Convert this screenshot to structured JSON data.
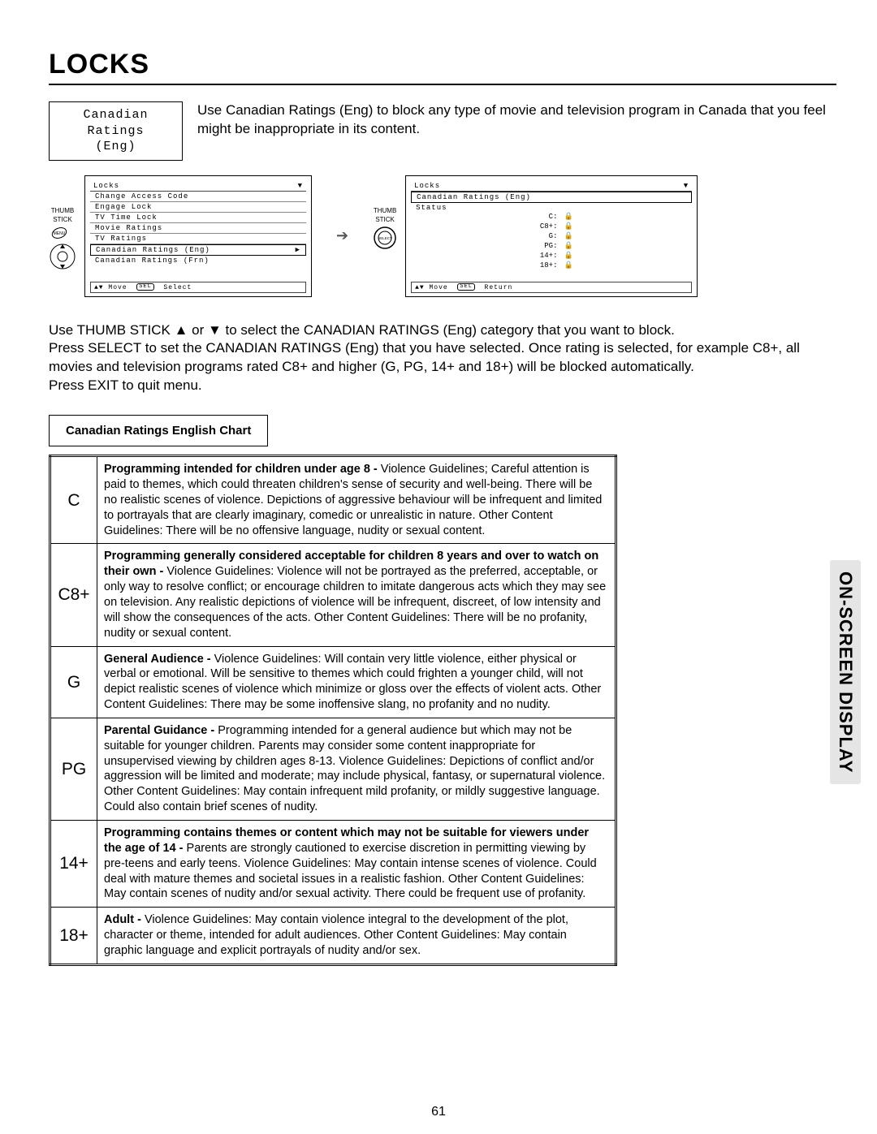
{
  "title": "LOCKS",
  "introBoxLine1": "Canadian Ratings",
  "introBoxLine2": "(Eng)",
  "introText": "Use Canadian Ratings (Eng) to block any type of movie and television program in Canada that you feel might be inappropriate in its content.",
  "thumbLabel1": "THUMB",
  "thumbLabel2": "STICK",
  "menuBadge": "MENU",
  "selectBadge": "SELECT",
  "osd1": {
    "header": "Locks",
    "items": [
      "Change Access Code",
      "Engage Lock",
      "TV Time Lock",
      "Movie Ratings",
      "TV Ratings"
    ],
    "highlight": "Canadian Ratings (Eng)",
    "after": "Canadian Ratings (Frn)",
    "footer": "▲▼ Move   SEL  Select"
  },
  "osd2": {
    "header": "Locks",
    "sub": "Canadian Ratings (Eng)",
    "statusLabel": "Status",
    "rows": [
      {
        "k": "C:",
        "lock": "🔒"
      },
      {
        "k": "C8+:",
        "lock": "🔒"
      },
      {
        "k": "G:",
        "lock": "🔒"
      },
      {
        "k": "PG:",
        "lock": "🔒"
      },
      {
        "k": "14+:",
        "lock": "🔒"
      },
      {
        "k": "18+:",
        "lock": "🔒"
      }
    ],
    "footer": "▲▼ Move   SEL  Return"
  },
  "bodyText": "Use THUMB STICK ▲ or ▼ to select the CANADIAN RATINGS (Eng) category that you want to block.\nPress SELECT to set the CANADIAN RATINGS (Eng) that you have selected. Once rating is selected, for example C8+, all movies and television programs rated C8+ and higher (G, PG, 14+ and 18+) will be blocked automatically.\nPress EXIT to quit menu.",
  "chartTitle": "Canadian Ratings English Chart",
  "ratings": [
    {
      "code": "C",
      "descBold": "Programming intended for children under age 8 - ",
      "desc": "Violence Guidelines; Careful attention is paid to themes, which could threaten children's sense of security and well-being.  There will be no realistic scenes of violence.  Depictions of aggressive behaviour will be infrequent and limited to portrayals that are clearly imaginary, comedic or unrealistic in nature.  Other Content Guidelines:  There will be no offensive language, nudity or sexual content."
    },
    {
      "code": "C8+",
      "descBold": "Programming generally considered acceptable for children 8 years and over to watch on their own - ",
      "desc": "Violence Guidelines: Violence will not be portrayed as the preferred, acceptable, or only way to resolve conflict; or encourage children to imitate dangerous acts which they may see on television.  Any realistic depictions of violence will be infrequent, discreet, of low intensity and will show the consequences of the acts.  Other Content Guidelines: There will be no profanity, nudity or sexual content."
    },
    {
      "code": "G",
      "descBold": "General Audience - ",
      "desc": "Violence Guidelines: Will contain very little violence, either physical or verbal or emotional.  Will be sensitive to themes which could frighten a younger child, will not depict realistic scenes of violence which minimize or gloss over the effects of violent acts.  Other Content Guidelines: There may be some inoffensive slang, no profanity and no nudity."
    },
    {
      "code": "PG",
      "descBold": "Parental Guidance - ",
      "desc": "Programming intended for a general audience but which may not be suitable for younger children.  Parents may consider some content inappropriate for unsupervised viewing by children ages 8-13.  Violence Guidelines: Depictions of conflict and/or aggression will be limited and moderate; may include physical, fantasy, or supernatural violence.  Other Content Guidelines:  May contain infrequent mild profanity, or mildly suggestive language.  Could also contain brief scenes of nudity."
    },
    {
      "code": "14+",
      "descBold": "Programming contains themes or content which may not be suitable for viewers under the age of 14 - ",
      "desc": "Parents are strongly cautioned to exercise discretion in permitting viewing by pre-teens and early teens.  Violence Guidelines: May contain intense scenes of violence.  Could deal with mature themes and societal issues in a realistic fashion.  Other Content Guidelines: May contain scenes of nudity and/or sexual activity.  There could be frequent use of profanity."
    },
    {
      "code": "18+",
      "descBold": "Adult - ",
      "desc": "Violence Guidelines: May contain violence integral to the development of the plot, character or theme, intended for adult audiences.  Other Content Guidelines: May contain graphic language and explicit portrayals of nudity and/or sex."
    }
  ],
  "sideTab": "ON-SCREEN DISPLAY",
  "pageNum": "61"
}
